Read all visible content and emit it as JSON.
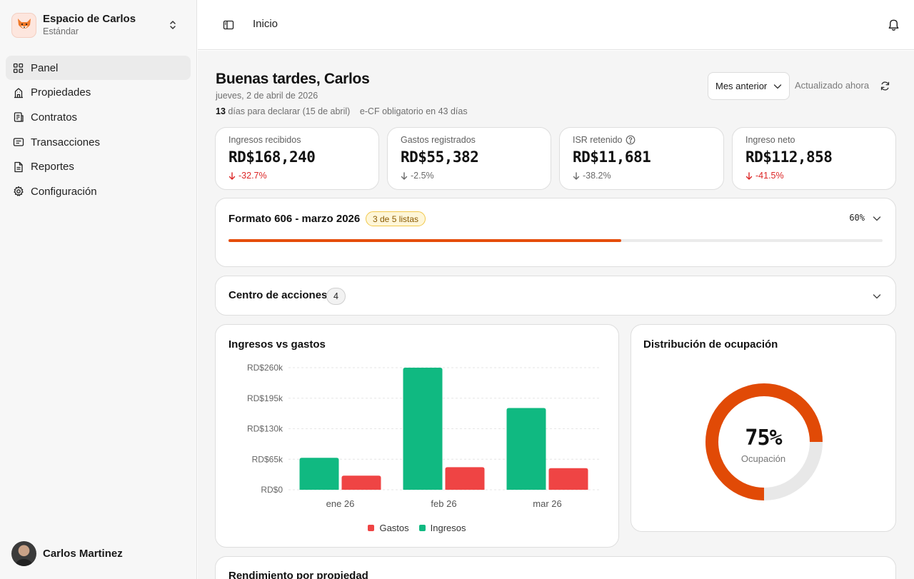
{
  "workspace": {
    "name": "Espacio de Carlos",
    "plan": "Estándar"
  },
  "nav": [
    {
      "label": "Panel",
      "icon": "grid-icon",
      "active": true
    },
    {
      "label": "Propiedades",
      "icon": "building-icon"
    },
    {
      "label": "Contratos",
      "icon": "contract-icon"
    },
    {
      "label": "Transacciones",
      "icon": "receipt-icon"
    },
    {
      "label": "Reportes",
      "icon": "report-icon"
    },
    {
      "label": "Configuración",
      "icon": "gear-icon"
    }
  ],
  "user": {
    "name": "Carlos Martinez"
  },
  "topbar": {
    "breadcrumb": "Inicio"
  },
  "header": {
    "greeting": "Buenas tardes, Carlos",
    "date": "jueves, 2 de abril de 2026",
    "days_count": "13",
    "days_text": "días para declarar (15 de abril)",
    "ecf_notice": "e-CF obligatorio en 43 días",
    "period": "Mes anterior",
    "updated": "Actualizado ahora"
  },
  "kpis": [
    {
      "label": "Ingresos recibidos",
      "value": "RD$168,240",
      "delta": "-32.7%",
      "tone": "negative"
    },
    {
      "label": "Gastos registrados",
      "value": "RD$55,382",
      "delta": "-2.5%",
      "tone": "neutral"
    },
    {
      "label": "ISR retenido",
      "value": "RD$11,681",
      "delta": "-38.2%",
      "tone": "neutral",
      "help": true
    },
    {
      "label": "Ingreso neto",
      "value": "RD$112,858",
      "delta": "-41.5%",
      "tone": "negative"
    }
  ],
  "formato606": {
    "title": "Formato 606 - marzo 2026",
    "badge": "3 de 5 listas",
    "percent_label": "60%",
    "progress": 0.6
  },
  "actions": {
    "title": "Centro de acciones",
    "count": "4"
  },
  "chart_data": {
    "type": "bar",
    "title": "Ingresos vs gastos",
    "categories": [
      "ene 26",
      "feb 26",
      "mar 26"
    ],
    "series": [
      {
        "name": "Ingresos",
        "color": "#10b981",
        "values": [
          68000,
          260000,
          174000
        ]
      },
      {
        "name": "Gastos",
        "color": "#ef4444",
        "values": [
          30000,
          48000,
          46000
        ]
      }
    ],
    "legend_order": [
      "Gastos",
      "Ingresos"
    ],
    "ylim": [
      0,
      260000
    ],
    "yticks": [
      0,
      65000,
      130000,
      195000,
      260000
    ],
    "ytick_labels": [
      "RD$0",
      "RD$65k",
      "RD$130k",
      "RD$195k",
      "RD$260k"
    ],
    "grid": true,
    "legend": "bottom"
  },
  "occupancy": {
    "title": "Distribución de ocupación",
    "value_label": "75%",
    "label": "Ocupación",
    "value": 0.75,
    "color": "#e14a06",
    "track_color": "#e8e8e8"
  },
  "performance": {
    "title": "Rendimiento por propiedad"
  }
}
